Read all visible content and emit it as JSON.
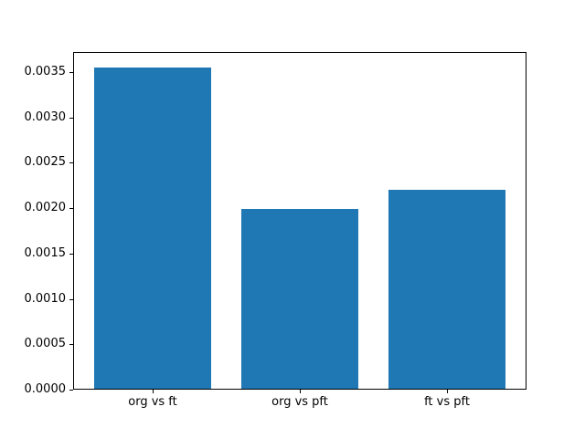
{
  "figure": {
    "background": "#ffffff"
  },
  "chart_data": {
    "type": "bar",
    "categories": [
      "org vs ft",
      "org vs pft",
      "ft vs pft"
    ],
    "values": [
      0.00354,
      0.00198,
      0.00219
    ],
    "title": "",
    "xlabel": "",
    "ylabel": "",
    "ylim": [
      0,
      0.00372
    ],
    "xlim": [
      -0.54,
      2.54
    ],
    "yticks": [
      0.0,
      0.0005,
      0.001,
      0.0015,
      0.002,
      0.0025,
      0.003,
      0.0035
    ],
    "ytick_labels": [
      "0.0000",
      "0.0005",
      "0.0010",
      "0.0015",
      "0.0020",
      "0.0025",
      "0.0030",
      "0.0035"
    ],
    "bar_color": "#1f77b4",
    "bar_width_fraction": 0.8,
    "grid": false,
    "legend": null,
    "spine_color": "#000000"
  }
}
